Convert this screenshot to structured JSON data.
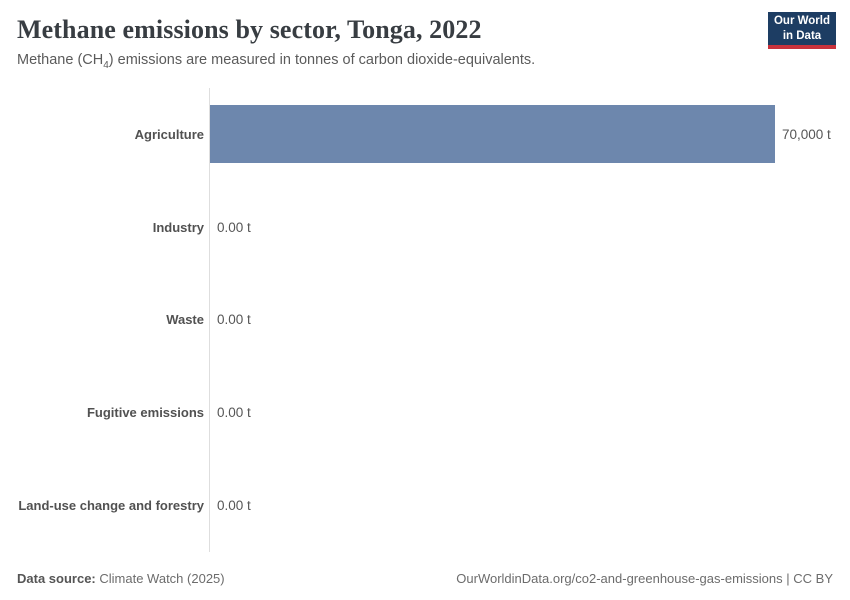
{
  "header": {
    "title": "Methane emissions by sector, Tonga, 2022",
    "subtitle": {
      "before": "Methane (CH",
      "sub": "4",
      "after": ") emissions are measured in tonnes of carbon dioxide-equivalents."
    },
    "logo": {
      "line1": "Our World",
      "line2": "in Data"
    }
  },
  "chart_data": {
    "type": "bar",
    "orientation": "horizontal",
    "title": "Methane emissions by sector, Tonga, 2022",
    "subtitle": "Methane (CH₄) emissions are measured in tonnes of carbon dioxide-equivalents.",
    "categories": [
      "Agriculture",
      "Industry",
      "Waste",
      "Fugitive emissions",
      "Land-use change and forestry"
    ],
    "values": [
      70000,
      0,
      0,
      0,
      0
    ],
    "value_labels": [
      "70,000 t",
      "0.00 t",
      "0.00 t",
      "0.00 t",
      "0.00 t"
    ],
    "unit": "t",
    "xlim": [
      0,
      70000
    ],
    "grid": false,
    "legend": false,
    "bar_color": "#6d87ad",
    "axis_color": "#dedede"
  },
  "footer": {
    "source_label": "Data source:",
    "source_value": "Climate Watch (2025)",
    "url": "OurWorldinData.org/co2-and-greenhouse-gas-emissions",
    "separator": " | ",
    "license": "CC BY"
  }
}
